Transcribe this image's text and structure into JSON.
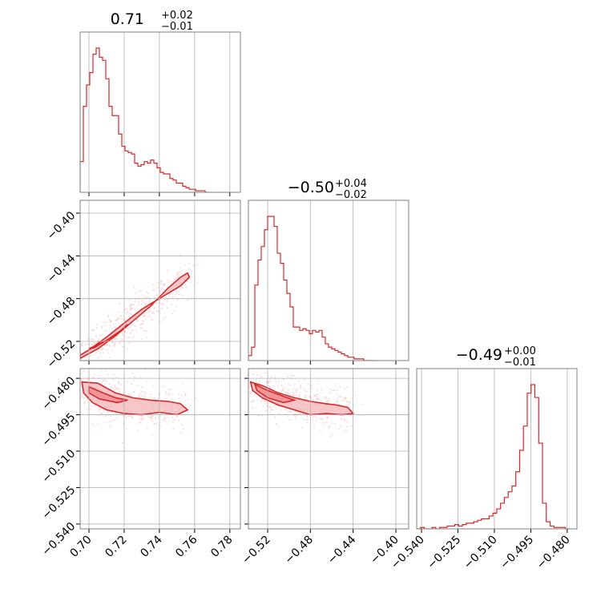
{
  "colors": {
    "accent": "#d62728",
    "fill": "#f4b6b8",
    "scatter": "#f8c9cb",
    "grid": "#b0b0b0",
    "frame": "#808080"
  },
  "chart_data": [
    {
      "type": "histogram",
      "panel": "diag-0",
      "title": {
        "median": "0.71",
        "upper": "+0.02",
        "lower": "−0.01"
      },
      "xlim": [
        0.695,
        0.786
      ],
      "xticks": [
        0.7,
        0.72,
        0.74,
        0.76,
        0.78
      ],
      "xtick_labels": [
        "0.70",
        "0.72",
        "0.74",
        "0.76",
        "0.78"
      ],
      "bin_edges_start": 0.695,
      "bin_width": 0.00182,
      "counts": [
        20,
        56,
        70,
        78,
        90,
        94,
        88,
        86,
        74,
        56,
        50,
        50,
        38,
        30,
        27,
        26,
        25,
        19,
        17,
        18,
        20,
        19,
        21,
        19,
        16,
        13,
        12,
        12,
        9,
        8,
        6,
        6,
        4,
        3,
        2,
        2,
        1,
        1,
        1,
        0
      ]
    },
    {
      "type": "histogram",
      "panel": "diag-1",
      "title": {
        "median": "−0.50",
        "upper": "+0.04",
        "lower": "−0.02"
      },
      "xlim": [
        -0.538,
        -0.388
      ],
      "xticks": [
        -0.52,
        -0.48,
        -0.44,
        -0.4
      ],
      "xtick_labels": [
        "−0.52",
        "−0.48",
        "−0.44",
        "−0.40"
      ],
      "bin_edges_start": -0.538,
      "bin_width": 0.003,
      "counts": [
        3,
        8,
        45,
        60,
        68,
        78,
        86,
        86,
        80,
        64,
        58,
        48,
        40,
        32,
        20,
        20,
        18,
        19,
        18,
        16,
        18,
        17,
        18,
        14,
        10,
        8,
        7,
        6,
        5,
        4,
        3,
        2,
        2,
        1,
        1,
        1,
        0,
        0,
        0,
        0
      ]
    },
    {
      "type": "histogram",
      "panel": "diag-2",
      "title": {
        "median": "−0.49",
        "upper": "+0.00",
        "lower": "−0.01"
      },
      "xlim": [
        -0.542,
        -0.476
      ],
      "xticks": [
        -0.54,
        -0.525,
        -0.51,
        -0.495,
        -0.48
      ],
      "xtick_labels": [
        "−0.540",
        "−0.525",
        "−0.510",
        "−0.495",
        "−0.480"
      ],
      "bin_edges_start": -0.542,
      "bin_width": 0.00157,
      "counts": [
        0,
        1,
        0,
        0,
        1,
        0,
        1,
        1,
        2,
        2,
        3,
        2,
        3,
        4,
        4,
        5,
        6,
        7,
        7,
        9,
        11,
        14,
        18,
        22,
        26,
        30,
        40,
        55,
        72,
        95,
        101,
        92,
        60,
        18,
        5,
        2,
        1,
        1,
        1,
        0
      ]
    },
    {
      "type": "contour",
      "panel": "lower-1-0",
      "xlim": [
        0.695,
        0.786
      ],
      "ylim": [
        -0.538,
        -0.388
      ],
      "yticks": [
        -0.52,
        -0.48,
        -0.44,
        -0.4
      ],
      "ytick_labels": [
        "−0.52",
        "−0.48",
        "−0.44",
        "−0.40"
      ],
      "outer_contour": [
        [
          0.695,
          -0.536
        ],
        [
          0.705,
          -0.527
        ],
        [
          0.715,
          -0.515
        ],
        [
          0.725,
          -0.501
        ],
        [
          0.735,
          -0.487
        ],
        [
          0.745,
          -0.47
        ],
        [
          0.752,
          -0.46
        ],
        [
          0.756,
          -0.456
        ],
        [
          0.757,
          -0.46
        ],
        [
          0.752,
          -0.468
        ],
        [
          0.742,
          -0.478
        ],
        [
          0.73,
          -0.49
        ],
        [
          0.72,
          -0.503
        ],
        [
          0.71,
          -0.516
        ],
        [
          0.7,
          -0.528
        ],
        [
          0.695,
          -0.533
        ]
      ],
      "inner_contour": [
        [
          0.7,
          -0.527
        ],
        [
          0.71,
          -0.519
        ],
        [
          0.718,
          -0.51
        ],
        [
          0.722,
          -0.504
        ],
        [
          0.72,
          -0.508
        ],
        [
          0.712,
          -0.517
        ],
        [
          0.703,
          -0.526
        ]
      ]
    },
    {
      "type": "contour",
      "panel": "lower-2-0",
      "xlim": [
        0.695,
        0.786
      ],
      "ylim": [
        -0.542,
        -0.476
      ],
      "yticks": [
        -0.54,
        -0.525,
        -0.51,
        -0.495,
        -0.48
      ],
      "ytick_labels": [
        "−0.540",
        "−0.525",
        "−0.510",
        "−0.495",
        "−0.480"
      ],
      "outer_contour": [
        [
          0.696,
          -0.4815
        ],
        [
          0.705,
          -0.482
        ],
        [
          0.715,
          -0.486
        ],
        [
          0.725,
          -0.488
        ],
        [
          0.735,
          -0.489
        ],
        [
          0.745,
          -0.4895
        ],
        [
          0.752,
          -0.4905
        ],
        [
          0.756,
          -0.493
        ],
        [
          0.75,
          -0.495
        ],
        [
          0.74,
          -0.494
        ],
        [
          0.73,
          -0.495
        ],
        [
          0.72,
          -0.4945
        ],
        [
          0.71,
          -0.493
        ],
        [
          0.702,
          -0.49
        ],
        [
          0.697,
          -0.486
        ]
      ],
      "inner_contour": [
        [
          0.7,
          -0.4835
        ],
        [
          0.708,
          -0.486
        ],
        [
          0.715,
          -0.488
        ],
        [
          0.722,
          -0.489
        ],
        [
          0.716,
          -0.49
        ],
        [
          0.706,
          -0.4885
        ],
        [
          0.7,
          -0.486
        ]
      ]
    },
    {
      "type": "contour",
      "panel": "lower-2-1",
      "xlim": [
        -0.538,
        -0.388
      ],
      "ylim": [
        -0.542,
        -0.476
      ],
      "outer_contour": [
        [
          -0.536,
          -0.4815
        ],
        [
          -0.525,
          -0.483
        ],
        [
          -0.51,
          -0.486
        ],
        [
          -0.495,
          -0.488
        ],
        [
          -0.48,
          -0.4895
        ],
        [
          -0.465,
          -0.4905
        ],
        [
          -0.455,
          -0.491
        ],
        [
          -0.445,
          -0.492
        ],
        [
          -0.44,
          -0.4945
        ],
        [
          -0.45,
          -0.495
        ],
        [
          -0.465,
          -0.4945
        ],
        [
          -0.48,
          -0.495
        ],
        [
          -0.495,
          -0.493
        ],
        [
          -0.51,
          -0.491
        ],
        [
          -0.525,
          -0.488
        ],
        [
          -0.534,
          -0.485
        ]
      ],
      "inner_contour": [
        [
          -0.532,
          -0.4825
        ],
        [
          -0.52,
          -0.485
        ],
        [
          -0.505,
          -0.4875
        ],
        [
          -0.495,
          -0.489
        ],
        [
          -0.505,
          -0.49
        ],
        [
          -0.52,
          -0.488
        ],
        [
          -0.53,
          -0.485
        ]
      ]
    }
  ]
}
